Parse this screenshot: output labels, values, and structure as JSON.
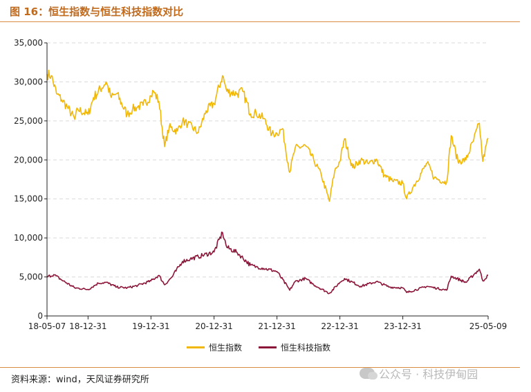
{
  "figure": {
    "title": "图 16：恒生指数与恒生科技指数对比",
    "source": "资料来源：wind，天风证券研究所",
    "watermark": "公众号 · 科技伊甸园"
  },
  "colors": {
    "hsi": "#F2B705",
    "hstech": "#8B1538",
    "title": "#c06a1d",
    "rule": "#d98b3f"
  },
  "chart_data": {
    "type": "line",
    "title": "",
    "xlabel": "",
    "ylabel": "",
    "ylim": [
      0,
      35000
    ],
    "yticks": [
      0,
      5000,
      10000,
      15000,
      20000,
      25000,
      30000,
      35000
    ],
    "ytick_labels": [
      "0",
      "5,000",
      "10,000",
      "15,000",
      "20,000",
      "25,000",
      "30,000",
      "35,000"
    ],
    "xlim": [
      "2018-05-07",
      "2025-05-09"
    ],
    "xticks": [
      "2018-05-07",
      "2018-12-31",
      "2019-12-31",
      "2020-12-31",
      "2021-12-31",
      "2022-12-31",
      "2023-12-31",
      "2025-05-09"
    ],
    "xtick_labels": [
      "18-05-07",
      "18-12-31",
      "19-12-31",
      "20-12-31",
      "21-12-31",
      "22-12-31",
      "23-12-31",
      "25-05-09"
    ],
    "grid": "horizontal dashed",
    "legend_position": "bottom-center",
    "series": [
      {
        "name": "恒生指数",
        "color": "#F2B705",
        "points": [
          [
            "2018-05-07",
            31000
          ],
          [
            "2018-06-01",
            30800
          ],
          [
            "2018-07-01",
            28500
          ],
          [
            "2018-08-01",
            27700
          ],
          [
            "2018-09-01",
            26800
          ],
          [
            "2018-10-15",
            25200
          ],
          [
            "2018-11-01",
            26500
          ],
          [
            "2018-12-31",
            25800
          ],
          [
            "2019-02-01",
            28000
          ],
          [
            "2019-04-15",
            30000
          ],
          [
            "2019-05-15",
            28000
          ],
          [
            "2019-06-15",
            28500
          ],
          [
            "2019-08-15",
            25800
          ],
          [
            "2019-09-15",
            26500
          ],
          [
            "2019-10-15",
            26800
          ],
          [
            "2019-11-15",
            27000
          ],
          [
            "2019-12-31",
            28200
          ],
          [
            "2020-01-15",
            28800
          ],
          [
            "2020-02-15",
            27500
          ],
          [
            "2020-03-19",
            21700
          ],
          [
            "2020-04-15",
            24200
          ],
          [
            "2020-06-01",
            23700
          ],
          [
            "2020-07-01",
            25000
          ],
          [
            "2020-08-01",
            24600
          ],
          [
            "2020-10-01",
            23500
          ],
          [
            "2020-11-15",
            26300
          ],
          [
            "2020-12-31",
            27200
          ],
          [
            "2021-02-18",
            30800
          ],
          [
            "2021-03-15",
            28800
          ],
          [
            "2021-05-15",
            28500
          ],
          [
            "2021-06-15",
            28800
          ],
          [
            "2021-07-31",
            25900
          ],
          [
            "2021-09-01",
            26000
          ],
          [
            "2021-10-15",
            25300
          ],
          [
            "2021-12-01",
            23300
          ],
          [
            "2021-12-31",
            23400
          ],
          [
            "2022-02-01",
            24000
          ],
          [
            "2022-03-15",
            18400
          ],
          [
            "2022-04-15",
            21500
          ],
          [
            "2022-06-15",
            21800
          ],
          [
            "2022-08-01",
            20000
          ],
          [
            "2022-09-15",
            18000
          ],
          [
            "2022-10-31",
            14700
          ],
          [
            "2022-12-01",
            18600
          ],
          [
            "2022-12-31",
            19800
          ],
          [
            "2023-01-27",
            22700
          ],
          [
            "2023-03-15",
            19000
          ],
          [
            "2023-05-01",
            20000
          ],
          [
            "2023-06-15",
            19500
          ],
          [
            "2023-07-31",
            20100
          ],
          [
            "2023-09-15",
            18000
          ],
          [
            "2023-11-01",
            17300
          ],
          [
            "2023-12-31",
            17000
          ],
          [
            "2024-01-22",
            15000
          ],
          [
            "2024-03-01",
            16600
          ],
          [
            "2024-05-20",
            19600
          ],
          [
            "2024-07-01",
            17700
          ],
          [
            "2024-09-10",
            17100
          ],
          [
            "2024-10-07",
            23100
          ],
          [
            "2024-11-15",
            19800
          ],
          [
            "2024-12-31",
            20000
          ],
          [
            "2025-02-15",
            22600
          ],
          [
            "2025-03-19",
            24700
          ],
          [
            "2025-04-08",
            19800
          ],
          [
            "2025-05-09",
            22800
          ]
        ]
      },
      {
        "name": "恒生科技指数",
        "color": "#8B1538",
        "points": [
          [
            "2018-05-07",
            5000
          ],
          [
            "2018-06-15",
            5300
          ],
          [
            "2018-08-01",
            4600
          ],
          [
            "2018-10-15",
            3600
          ],
          [
            "2018-12-31",
            3400
          ],
          [
            "2019-03-01",
            4200
          ],
          [
            "2019-04-15",
            4300
          ],
          [
            "2019-06-15",
            3700
          ],
          [
            "2019-08-15",
            3600
          ],
          [
            "2019-10-15",
            3900
          ],
          [
            "2019-12-31",
            4500
          ],
          [
            "2020-02-15",
            5200
          ],
          [
            "2020-03-19",
            4000
          ],
          [
            "2020-05-01",
            5000
          ],
          [
            "2020-07-01",
            7000
          ],
          [
            "2020-08-15",
            7300
          ],
          [
            "2020-10-01",
            7600
          ],
          [
            "2020-12-31",
            8200
          ],
          [
            "2021-02-18",
            10700
          ],
          [
            "2021-03-15",
            8800
          ],
          [
            "2021-05-15",
            8100
          ],
          [
            "2021-07-31",
            6500
          ],
          [
            "2021-09-01",
            6300
          ],
          [
            "2021-10-15",
            6100
          ],
          [
            "2021-12-31",
            5700
          ],
          [
            "2022-03-15",
            3300
          ],
          [
            "2022-04-15",
            4400
          ],
          [
            "2022-06-15",
            4800
          ],
          [
            "2022-08-01",
            4000
          ],
          [
            "2022-10-31",
            2900
          ],
          [
            "2022-12-31",
            4300
          ],
          [
            "2023-01-27",
            4800
          ],
          [
            "2023-05-01",
            3800
          ],
          [
            "2023-07-31",
            4400
          ],
          [
            "2023-10-15",
            3700
          ],
          [
            "2023-12-31",
            3600
          ],
          [
            "2024-01-22",
            3000
          ],
          [
            "2024-05-20",
            3800
          ],
          [
            "2024-09-10",
            3300
          ],
          [
            "2024-10-07",
            5100
          ],
          [
            "2024-12-31",
            4300
          ],
          [
            "2025-02-15",
            5300
          ],
          [
            "2025-03-19",
            6000
          ],
          [
            "2025-04-08",
            4500
          ],
          [
            "2025-05-09",
            5200
          ]
        ]
      }
    ]
  }
}
